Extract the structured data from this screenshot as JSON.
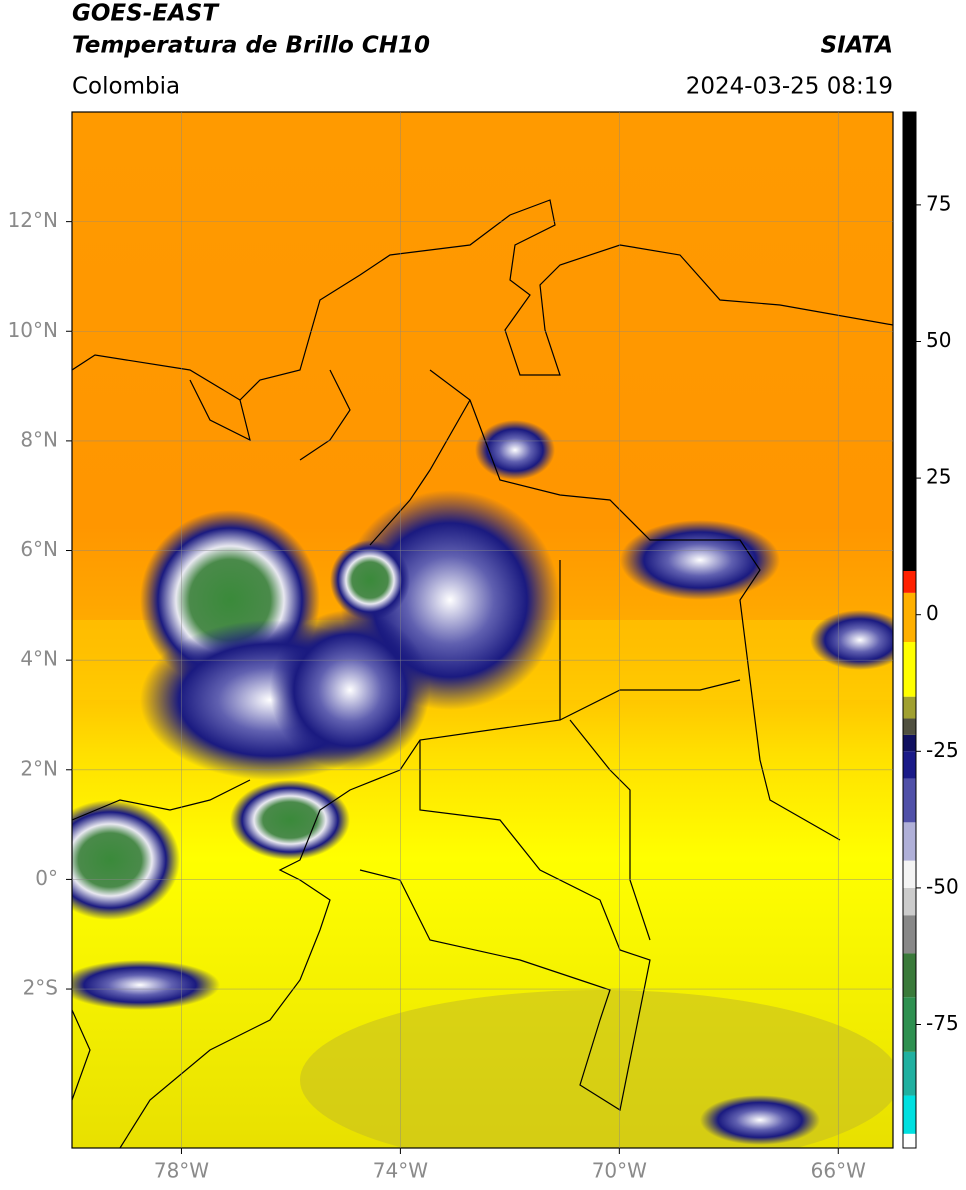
{
  "header": {
    "title": "GOES-EAST",
    "subtitle": "Temperatura de Brillo CH10",
    "source": "SIATA",
    "region": "Colombia",
    "timestamp": "2024-03-25 08:19"
  },
  "map": {
    "xlim": [
      -80,
      -65
    ],
    "ylim": [
      -4.9,
      14
    ],
    "grid": true,
    "xticks": [
      {
        "value": -78,
        "label": "78°W"
      },
      {
        "value": -74,
        "label": "74°W"
      },
      {
        "value": -70,
        "label": "70°W"
      },
      {
        "value": -66,
        "label": "66°W"
      }
    ],
    "yticks": [
      {
        "value": 12,
        "label": "12°N"
      },
      {
        "value": 10,
        "label": "10°N"
      },
      {
        "value": 8,
        "label": "8°N"
      },
      {
        "value": 6,
        "label": "6°N"
      },
      {
        "value": 4,
        "label": "4°N"
      },
      {
        "value": 2,
        "label": "2°N"
      },
      {
        "value": 0,
        "label": "0°"
      },
      {
        "value": -2,
        "label": "2°S"
      }
    ]
  },
  "colorbar": {
    "ylim": [
      -97.6,
      92
    ],
    "yticks": [
      75,
      50,
      25,
      0,
      -25,
      -50,
      -75
    ],
    "levels": [
      -95,
      -88,
      -80,
      -70,
      -62,
      -55,
      -50,
      -45,
      -38,
      -30,
      -25,
      -22,
      -19,
      -15,
      -5,
      4,
      8
    ],
    "colors": [
      "#ffffff",
      "#00e0e0",
      "#20b0a0",
      "#2e9050",
      "#3a7a3a",
      "#888888",
      "#cccccc",
      "#f4f4f4",
      "#b0b0d8",
      "#5050a8",
      "#1a1a88",
      "#101060",
      "#505040",
      "#a0a030",
      "#ffff00",
      "#ffb000",
      "#ff2000",
      "#000000"
    ]
  }
}
